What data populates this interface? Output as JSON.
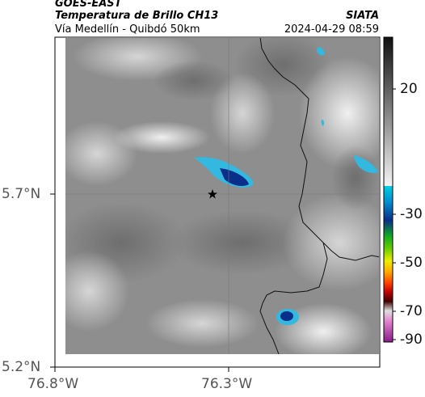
{
  "header": {
    "satellite": "GOES-EAST",
    "product": "Temperatura de Brillo CH13",
    "region": "Vía Medellín - Quibdó 50km",
    "agency": "SIATA",
    "datetime": "2024-04-29 08:59"
  },
  "axes": {
    "y_ticks": [
      "5.7°N",
      "5.2°N"
    ],
    "x_ticks": [
      "76.8°W",
      "76.3°W"
    ]
  },
  "colorbar": {
    "ticks": [
      "20",
      "-30",
      "-50",
      "-70",
      "-90"
    ],
    "colors": {
      "gray_light": "#e8e8e8",
      "gray_dark": "#2a2a2a",
      "cyan": "#00bcd4",
      "blue": "#0a3d8f",
      "green": "#22aa22",
      "yellow": "#e8e800",
      "orange": "#ff8800",
      "red": "#c40000",
      "dark_red": "#3a0000",
      "pink": "#e060c0",
      "purple": "#a030a0"
    }
  },
  "map": {
    "marker": "star-marker",
    "background_colors": {
      "mid_gray": "#8e8e8e",
      "light_gray": "#c8c8c8"
    }
  }
}
